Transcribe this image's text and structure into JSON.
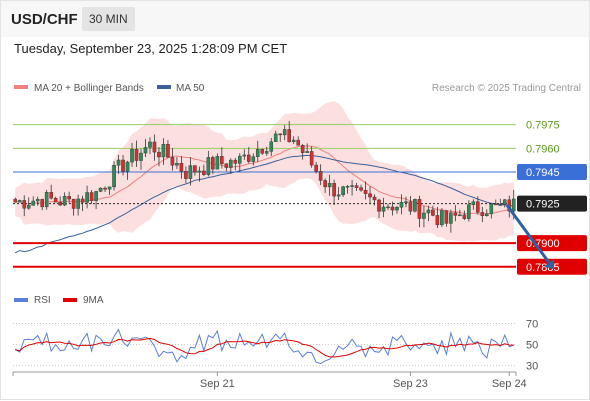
{
  "header": {
    "symbol": "USD/CHF",
    "timeframe": "30 MIN",
    "datetime": "Tuesday, September 23, 2025 1:28:09 PM CET"
  },
  "legend": {
    "items": [
      {
        "label": "MA 20 + Bollinger Bands",
        "color": "#f08080"
      },
      {
        "label": "MA 50",
        "color": "#3a5f9a"
      }
    ],
    "credit": "Research © 2025 Trading Central"
  },
  "rsi_legend": {
    "items": [
      {
        "label": "RSI",
        "color": "#5b7fd6"
      },
      {
        "label": "9MA",
        "color": "#e00000"
      }
    ]
  },
  "chart_data": [
    {
      "type": "candlestick",
      "series": [
        {
          "name": "MA 20 + Bollinger Bands",
          "color": "#f08080"
        },
        {
          "name": "MA 50",
          "color": "#3a5f9a"
        }
      ],
      "current_price": "0.7925",
      "levels": [
        {
          "value": 0.7975,
          "label": "0.7975",
          "kind": "resistance-target",
          "color": "#9ccc65"
        },
        {
          "value": 0.796,
          "label": "0.7960",
          "kind": "resistance-target",
          "color": "#9ccc65"
        },
        {
          "value": 0.7945,
          "label": "0.7945",
          "kind": "pivot",
          "color": "#3b6fd8"
        },
        {
          "value": 0.7925,
          "label": "0.7925",
          "kind": "last-price",
          "color": "#222222"
        },
        {
          "value": 0.79,
          "label": "0.7900",
          "kind": "support",
          "color": "#e00000"
        },
        {
          "value": 0.7885,
          "label": "0.7885",
          "kind": "support",
          "color": "#e00000"
        }
      ],
      "ylim": [
        0.7876,
        0.799
      ],
      "x_ticks": [
        "Sep 21",
        "Sep 23",
        "Sep 24"
      ],
      "x_range_bars": [
        0,
        112
      ],
      "x_tick_bars": [
        45,
        88,
        110
      ],
      "forecast_arrow": {
        "from_bar": 109.5,
        "from_value": 0.7924,
        "to_bar": 122,
        "to_value": 0.7885
      }
    },
    {
      "type": "line",
      "name": "RSI",
      "series": [
        {
          "name": "RSI",
          "color": "#5b7fd6"
        },
        {
          "name": "9MA",
          "color": "#e00000"
        }
      ],
      "y_ticks": [
        "70",
        "50",
        "30"
      ],
      "ylim": [
        25,
        80
      ],
      "gridlines": [
        70,
        50,
        30
      ]
    }
  ]
}
